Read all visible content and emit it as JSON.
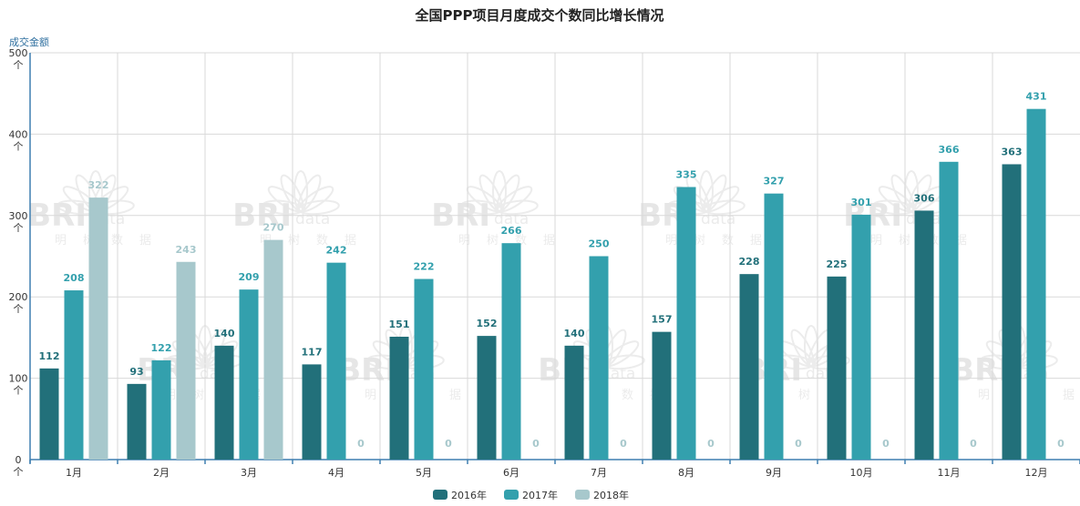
{
  "chart_data": {
    "type": "bar",
    "title": "全国PPP项目月度成交个数同比增长情况",
    "unit_label": "成交金额",
    "y_ticks": [
      "0\n个",
      "100\n个",
      "200\n个",
      "300\n个",
      "400\n个",
      "500\n个"
    ],
    "y_tick_values": [
      0,
      100,
      200,
      300,
      400,
      500
    ],
    "ylim": [
      0,
      500
    ],
    "categories": [
      "1月",
      "2月",
      "3月",
      "4月",
      "5月",
      "6月",
      "7月",
      "8月",
      "9月",
      "10月",
      "11月",
      "12月"
    ],
    "series": [
      {
        "name": "2016年",
        "color": "#22707a",
        "values": [
          112,
          93,
          140,
          117,
          151,
          152,
          140,
          157,
          228,
          225,
          306,
          363
        ]
      },
      {
        "name": "2017年",
        "color": "#33a0ad",
        "values": [
          208,
          122,
          209,
          242,
          222,
          266,
          250,
          335,
          327,
          301,
          366,
          431
        ]
      },
      {
        "name": "2018年",
        "color": "#a7c8cc",
        "values": [
          322,
          243,
          270,
          0,
          0,
          0,
          0,
          0,
          0,
          0,
          0,
          0
        ]
      }
    ],
    "legend_position": "bottom-center",
    "grid": true
  },
  "watermark": {
    "brand": "BRI",
    "suffix": "data",
    "chars": [
      "明",
      "树",
      "数",
      "据"
    ]
  }
}
